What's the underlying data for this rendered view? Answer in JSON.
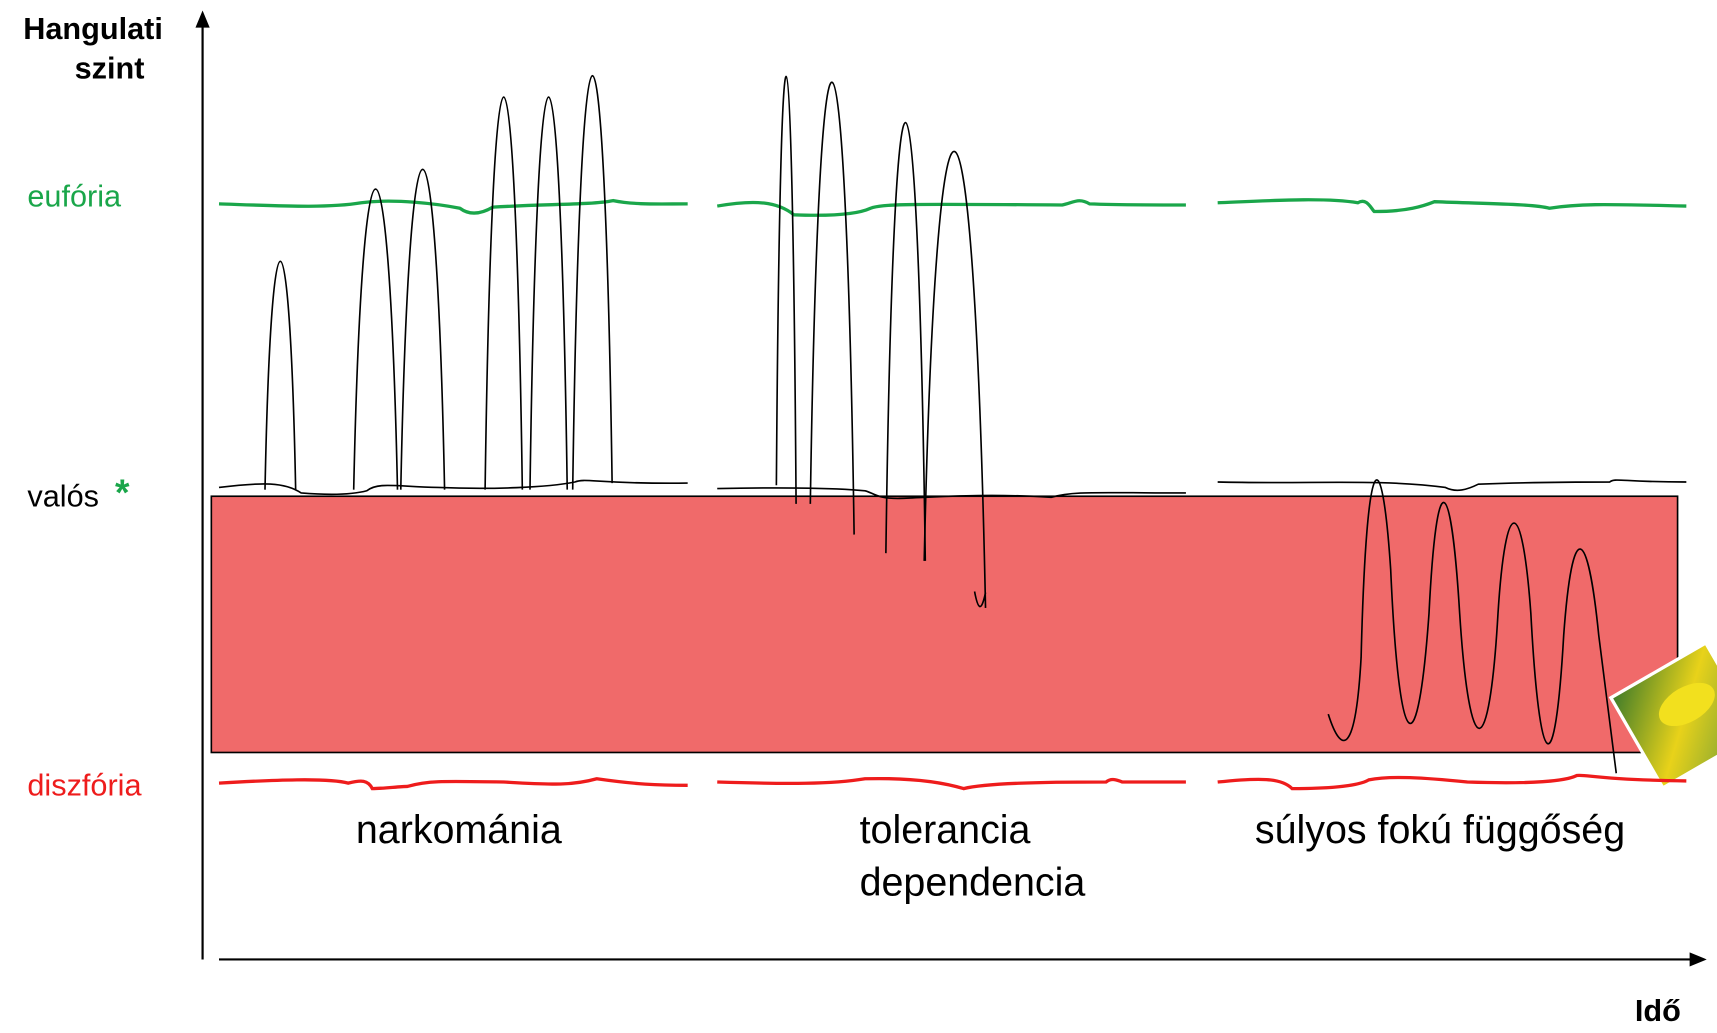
{
  "y_axis": {
    "title_lines": [
      "Hangulati",
      "szint"
    ]
  },
  "levels": {
    "euphoria": "eufória",
    "real": "valós",
    "real_marker": "*",
    "dysphoria": "diszfória"
  },
  "phases": [
    {
      "lines": [
        "narkománia"
      ]
    },
    {
      "lines": [
        "tolerancia",
        "dependencia"
      ]
    },
    {
      "lines": [
        "súlyos fokú függőség"
      ]
    }
  ],
  "x_axis": {
    "title": "Idő"
  }
}
